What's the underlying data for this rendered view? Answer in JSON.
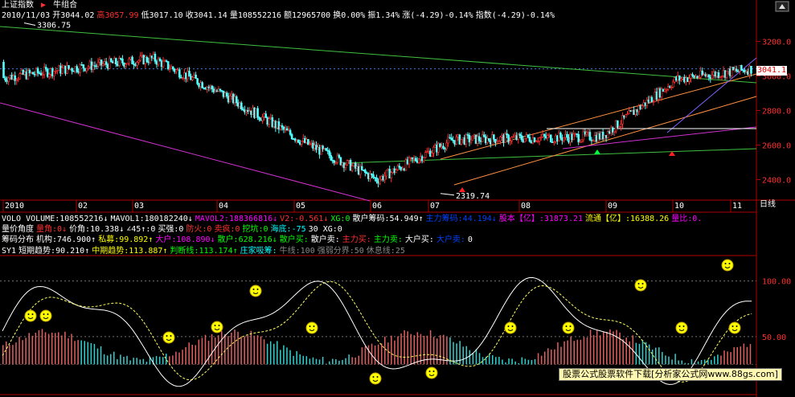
{
  "header": {
    "title": "上证指数",
    "combo_label": "牛组合",
    "date": "2010/11/03",
    "open": "开3044.02",
    "high": "高3057.99",
    "low": "低3017.10",
    "close": "收3041.14",
    "volume": "量108552216",
    "amount": "额12965700",
    "turnover": "换0.00%",
    "amplitude": "振1.34%",
    "change": "涨(-4.29)-0.14%",
    "index": "指数(-4.29)-0.14%"
  },
  "main_panel": {
    "annotation_high": "3306.75",
    "annotation_low": "2319.74",
    "last_price": "3041.1",
    "y_ticks": [
      "3200.0",
      "3000.0",
      "2800.0",
      "2600.0",
      "2400.0"
    ],
    "x_ticks": [
      "2010",
      "02",
      "03",
      "04",
      "05",
      "06",
      "07",
      "08",
      "09",
      "10",
      "11"
    ],
    "period_label": "日线"
  },
  "vol_row": [
    {
      "text": "VOLO VOLUME:108552216↓",
      "color": "#ffffff"
    },
    {
      "text": "MAVOL1:180182240↓",
      "color": "#ffffff"
    },
    {
      "text": "MAVOL2:188366816↓",
      "color": "#ff00ff"
    },
    {
      "text": "V2:-0.561↓",
      "color": "#ff3030"
    },
    {
      "text": "XG:0",
      "color": "#00ff00"
    },
    {
      "text": "散户筹码:54.949↑",
      "color": "#ffffff"
    },
    {
      "text": "主力筹码:44.194↓",
      "color": "#0040ff"
    },
    {
      "text": "股本【亿】:31873.21",
      "color": "#ff00ff"
    },
    {
      "text": "流通【亿】:16388.26",
      "color": "#ffff00"
    },
    {
      "text": "量比:0.",
      "color": "#ff00ff"
    }
  ],
  "angle_row": [
    {
      "text": "量价角度",
      "color": "#ffffff"
    },
    {
      "text": "量角:0↓",
      "color": "#ff3030"
    },
    {
      "text": "价角:10.338↓",
      "color": "#ffffff"
    },
    {
      "text": "∠45↑:0",
      "color": "#ffffff"
    },
    {
      "text": "买强:0",
      "color": "#ffffff"
    },
    {
      "text": "防火:0",
      "color": "#ff3030"
    },
    {
      "text": "卖疯:0",
      "color": "#ff3030"
    },
    {
      "text": "挖坑:0",
      "color": "#00ff00"
    },
    {
      "text": "海底:-75",
      "color": "#00ffff"
    },
    {
      "text": "30 XG:0",
      "color": "#ffffff"
    }
  ],
  "chip_row": [
    {
      "text": "筹码分布",
      "color": "#ffffff"
    },
    {
      "text": "机构:746.900↑",
      "color": "#ffffff"
    },
    {
      "text": "私募:99.892↑",
      "color": "#ffff00"
    },
    {
      "text": "大户:108.890↓",
      "color": "#ff00ff"
    },
    {
      "text": "散户:628.216↓",
      "color": "#00ff00"
    },
    {
      "text": "散户买:",
      "color": "#00ff00"
    },
    {
      "text": "散户卖:",
      "color": "#ffffff"
    },
    {
      "text": "主力买:",
      "color": "#ff3030"
    },
    {
      "text": "主力卖:",
      "color": "#00ff00"
    },
    {
      "text": "大户买:",
      "color": "#ffffff"
    },
    {
      "text": "大户卖:",
      "color": "#0040ff"
    },
    {
      "text": "0",
      "color": "#ffffff"
    }
  ],
  "sy1_row": [
    {
      "text": "SY1",
      "color": "#ffffff"
    },
    {
      "text": "短期趋势:90.210↑",
      "color": "#ffffff"
    },
    {
      "text": "中期趋势:113.887↑",
      "color": "#ffff00"
    },
    {
      "text": "判断线:113.174↑",
      "color": "#00ff00"
    },
    {
      "text": "庄家吸筹:",
      "color": "#00ffff"
    },
    {
      "text": "牛线:100",
      "color": "#888888"
    },
    {
      "text": "强弱分界:50",
      "color": "#888888"
    },
    {
      "text": "休息线:25",
      "color": "#888888"
    }
  ],
  "lower_panel": {
    "y_ticks": [
      "100.00",
      "50.00"
    ]
  },
  "watermark": "股票公式股票软件下载[分析家公式网www.88gs.com]",
  "colors": {
    "up": "#ff3232",
    "down": "#54ffff",
    "bg": "#000000",
    "axis": "#b00000"
  },
  "chart_data": [
    {
      "type": "candlestick",
      "title": "上证指数",
      "x": [
        "2010-01",
        "2010-02",
        "2010-03",
        "2010-04",
        "2010-05",
        "2010-06",
        "2010-07",
        "2010-08",
        "2010-09",
        "2010-10",
        "2010-11"
      ],
      "monthly_close": [
        2990,
        3050,
        3100,
        2880,
        2620,
        2400,
        2630,
        2640,
        2650,
        2980,
        3041.14
      ],
      "ylim": [
        2300,
        3300
      ],
      "annotations": [
        {
          "label": "3306.75",
          "type": "high"
        },
        {
          "label": "2319.74",
          "type": "low"
        }
      ]
    },
    {
      "type": "line",
      "title": "SY1",
      "series": [
        {
          "name": "短期趋势",
          "last": 90.21
        },
        {
          "name": "中期趋势",
          "last": 113.887
        },
        {
          "name": "判断线",
          "last": 113.174
        }
      ],
      "reference_lines": [
        {
          "name": "牛线",
          "value": 100
        },
        {
          "name": "强弱分界",
          "value": 50
        },
        {
          "name": "休息线",
          "value": 25
        }
      ],
      "ylim": [
        0,
        120
      ]
    }
  ]
}
